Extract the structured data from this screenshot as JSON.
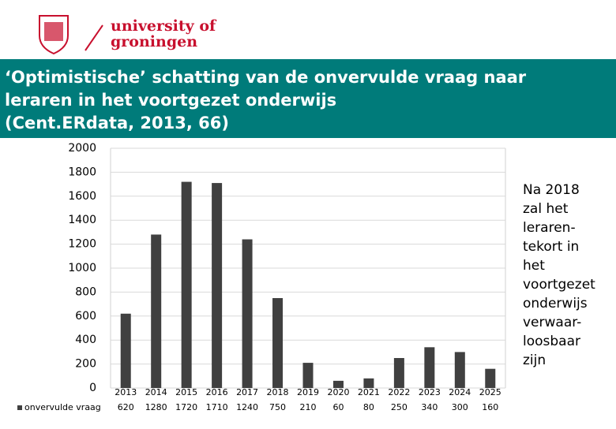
{
  "header": {
    "logo_lines": [
      "university of",
      "groningen"
    ]
  },
  "chart_data": {
    "type": "bar",
    "title_lines": [
      "‘Optimistische’ schatting van de onvervulde vraag naar",
      "leraren in het voortgezet onderwijs",
      "(Cent.ERdata, 2013, 66)"
    ],
    "categories": [
      "2013",
      "2014",
      "2015",
      "2016",
      "2017",
      "2018",
      "2019",
      "2020",
      "2021",
      "2022",
      "2023",
      "2024",
      "2025"
    ],
    "series": [
      {
        "name": "onvervulde vraag",
        "color": "#404040",
        "values": [
          620,
          1280,
          1720,
          1710,
          1240,
          750,
          210,
          60,
          80,
          250,
          340,
          300,
          160
        ]
      }
    ],
    "ylim": [
      0,
      2000
    ],
    "yticks": [
      0,
      200,
      400,
      600,
      800,
      1000,
      1200,
      1400,
      1600,
      1800,
      2000
    ],
    "grid": true,
    "annotation_lines": [
      "Na 2018",
      "zal het",
      "leraren-",
      "tekort in",
      "het",
      "voortgezet",
      "onderwijs",
      "verwaar-",
      "loosbaar",
      "zijn"
    ]
  }
}
